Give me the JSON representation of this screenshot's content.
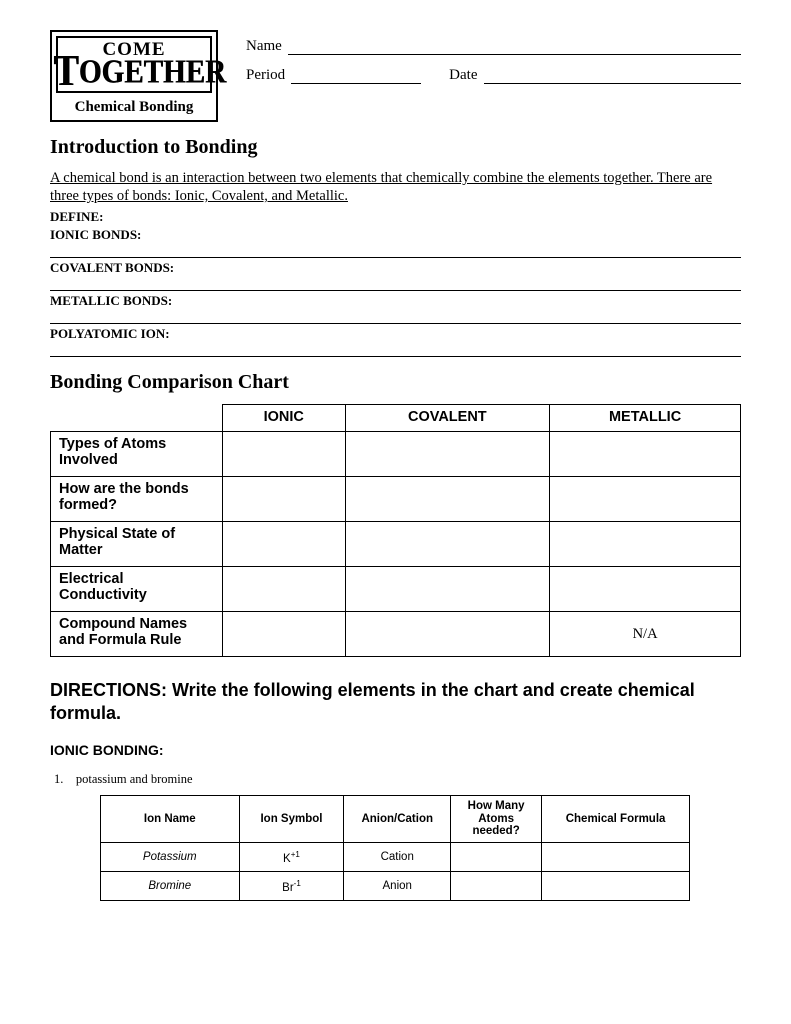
{
  "logo": {
    "line1": "COME",
    "line2_pre": "T",
    "line2_rest": "OGETHER",
    "subtitle": "Chemical Bonding"
  },
  "form": {
    "name_label": "Name",
    "period_label": "Period",
    "date_label": "Date"
  },
  "section1": {
    "heading": "Introduction to Bonding",
    "intro": "A chemical bond is an interaction between two elements that chemically combine the elements together.  There are three types of bonds: Ionic, Covalent, and Metallic.",
    "define_heading": "DEFINE:",
    "terms": [
      "IONIC BONDS:",
      "COVALENT BONDS:",
      "METALLIC BONDS:",
      "POLYATOMIC ION:"
    ]
  },
  "section2": {
    "heading": "Bonding Comparison Chart",
    "columns": [
      "IONIC",
      "COVALENT",
      "METALLIC"
    ],
    "rows": [
      {
        "label": "Types of Atoms Involved",
        "cells": [
          "",
          "",
          ""
        ]
      },
      {
        "label": "How are the bonds formed?",
        "cells": [
          "",
          "",
          ""
        ]
      },
      {
        "label": "Physical State of Matter",
        "cells": [
          "",
          "",
          ""
        ]
      },
      {
        "label": "Electrical Conductivity",
        "cells": [
          "",
          "",
          ""
        ]
      },
      {
        "label": "Compound Names and Formula Rule",
        "cells": [
          "",
          "",
          "N/A"
        ]
      }
    ]
  },
  "section3": {
    "directions": "DIRECTIONS: Write the following elements in the chart and create chemical formula.",
    "subheading": "IONIC BONDING:",
    "item_number": "1.",
    "item_text": "potassium and bromine",
    "ion_table": {
      "headers": [
        "Ion Name",
        "Ion Symbol",
        "Anion/Cation",
        "How Many Atoms needed?",
        "Chemical Formula"
      ],
      "rows": [
        {
          "name": "Potassium",
          "symbol": "K",
          "charge": "+1",
          "type": "Cation",
          "atoms": "",
          "formula": ""
        },
        {
          "name": "Bromine",
          "symbol": "Br",
          "charge": "-1",
          "type": "Anion",
          "atoms": "",
          "formula": ""
        }
      ]
    }
  }
}
